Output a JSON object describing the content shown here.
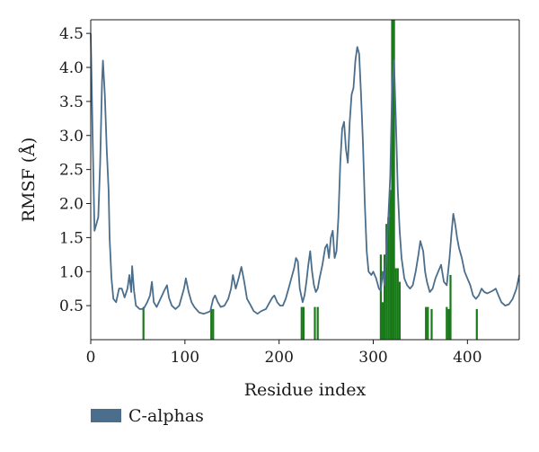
{
  "chart_data": {
    "type": "line",
    "xlabel": "Residue index",
    "ylabel": "RMSF (Å)",
    "xlim": [
      0,
      455
    ],
    "ylim": [
      0.0,
      4.7
    ],
    "x_ticks": [
      0,
      100,
      200,
      300,
      400
    ],
    "y_ticks": [
      0.5,
      1.0,
      1.5,
      2.0,
      2.5,
      3.0,
      3.5,
      4.0,
      4.5
    ],
    "x_tick_labels": [
      "0",
      "100",
      "200",
      "300",
      "400"
    ],
    "y_tick_labels": [
      "0.5",
      "1.0",
      "1.5",
      "2.0",
      "2.5",
      "3.0",
      "3.5",
      "4.0",
      "4.5"
    ],
    "grid": false,
    "legend_position": "bottom-left",
    "series": [
      {
        "name": "C-alphas",
        "color": "#4a6e8c",
        "points": [
          [
            0,
            4.5
          ],
          [
            2,
            3.0
          ],
          [
            4,
            1.6
          ],
          [
            6,
            1.7
          ],
          [
            8,
            1.8
          ],
          [
            10,
            2.6
          ],
          [
            12,
            3.8
          ],
          [
            13,
            4.1
          ],
          [
            15,
            3.6
          ],
          [
            17,
            2.8
          ],
          [
            19,
            2.2
          ],
          [
            20,
            1.5
          ],
          [
            22,
            0.9
          ],
          [
            24,
            0.6
          ],
          [
            27,
            0.55
          ],
          [
            30,
            0.75
          ],
          [
            33,
            0.75
          ],
          [
            36,
            0.62
          ],
          [
            39,
            0.75
          ],
          [
            41,
            0.95
          ],
          [
            43,
            0.7
          ],
          [
            44,
            1.08
          ],
          [
            46,
            0.72
          ],
          [
            48,
            0.5
          ],
          [
            52,
            0.45
          ],
          [
            56,
            0.45
          ],
          [
            60,
            0.55
          ],
          [
            63,
            0.65
          ],
          [
            65,
            0.85
          ],
          [
            67,
            0.55
          ],
          [
            70,
            0.48
          ],
          [
            74,
            0.6
          ],
          [
            78,
            0.72
          ],
          [
            81,
            0.8
          ],
          [
            83,
            0.62
          ],
          [
            86,
            0.5
          ],
          [
            90,
            0.45
          ],
          [
            94,
            0.5
          ],
          [
            97,
            0.65
          ],
          [
            99,
            0.75
          ],
          [
            101,
            0.9
          ],
          [
            104,
            0.7
          ],
          [
            107,
            0.55
          ],
          [
            110,
            0.48
          ],
          [
            115,
            0.4
          ],
          [
            120,
            0.38
          ],
          [
            124,
            0.4
          ],
          [
            127,
            0.42
          ],
          [
            130,
            0.6
          ],
          [
            132,
            0.65
          ],
          [
            135,
            0.55
          ],
          [
            138,
            0.48
          ],
          [
            142,
            0.5
          ],
          [
            146,
            0.6
          ],
          [
            149,
            0.75
          ],
          [
            151,
            0.95
          ],
          [
            154,
            0.75
          ],
          [
            157,
            0.9
          ],
          [
            160,
            1.07
          ],
          [
            163,
            0.85
          ],
          [
            166,
            0.6
          ],
          [
            170,
            0.5
          ],
          [
            173,
            0.42
          ],
          [
            177,
            0.38
          ],
          [
            181,
            0.42
          ],
          [
            186,
            0.45
          ],
          [
            190,
            0.55
          ],
          [
            193,
            0.62
          ],
          [
            195,
            0.65
          ],
          [
            198,
            0.55
          ],
          [
            201,
            0.5
          ],
          [
            204,
            0.5
          ],
          [
            207,
            0.6
          ],
          [
            210,
            0.75
          ],
          [
            213,
            0.9
          ],
          [
            216,
            1.05
          ],
          [
            218,
            1.2
          ],
          [
            220,
            1.15
          ],
          [
            222,
            0.75
          ],
          [
            225,
            0.55
          ],
          [
            227,
            0.65
          ],
          [
            229,
            0.85
          ],
          [
            231,
            1.1
          ],
          [
            233,
            1.3
          ],
          [
            235,
            1.0
          ],
          [
            237,
            0.8
          ],
          [
            239,
            0.7
          ],
          [
            241,
            0.75
          ],
          [
            243,
            0.9
          ],
          [
            246,
            1.1
          ],
          [
            249,
            1.35
          ],
          [
            251,
            1.4
          ],
          [
            253,
            1.2
          ],
          [
            255,
            1.5
          ],
          [
            257,
            1.6
          ],
          [
            259,
            1.2
          ],
          [
            261,
            1.3
          ],
          [
            263,
            1.8
          ],
          [
            265,
            2.6
          ],
          [
            267,
            3.1
          ],
          [
            269,
            3.2
          ],
          [
            271,
            2.8
          ],
          [
            273,
            2.6
          ],
          [
            275,
            3.2
          ],
          [
            277,
            3.6
          ],
          [
            279,
            3.7
          ],
          [
            281,
            4.1
          ],
          [
            283,
            4.3
          ],
          [
            285,
            4.2
          ],
          [
            287,
            3.6
          ],
          [
            289,
            2.9
          ],
          [
            291,
            2.0
          ],
          [
            293,
            1.3
          ],
          [
            295,
            1.0
          ],
          [
            298,
            0.95
          ],
          [
            300,
            1.0
          ],
          [
            303,
            0.9
          ],
          [
            306,
            0.75
          ],
          [
            308,
            0.72
          ],
          [
            310,
            1.0
          ],
          [
            312,
            0.8
          ],
          [
            314,
            1.3
          ],
          [
            316,
            1.8
          ],
          [
            318,
            2.4
          ],
          [
            320,
            3.7
          ],
          [
            322,
            4.1
          ],
          [
            324,
            3.2
          ],
          [
            326,
            2.2
          ],
          [
            328,
            1.6
          ],
          [
            330,
            1.2
          ],
          [
            333,
            0.9
          ],
          [
            336,
            0.8
          ],
          [
            339,
            0.75
          ],
          [
            342,
            0.8
          ],
          [
            345,
            1.0
          ],
          [
            348,
            1.25
          ],
          [
            350,
            1.45
          ],
          [
            353,
            1.3
          ],
          [
            355,
            1.0
          ],
          [
            357,
            0.85
          ],
          [
            360,
            0.7
          ],
          [
            363,
            0.75
          ],
          [
            366,
            0.9
          ],
          [
            369,
            1.0
          ],
          [
            372,
            1.1
          ],
          [
            375,
            0.85
          ],
          [
            378,
            0.8
          ],
          [
            381,
            1.2
          ],
          [
            383,
            1.55
          ],
          [
            385,
            1.85
          ],
          [
            387,
            1.7
          ],
          [
            389,
            1.5
          ],
          [
            391,
            1.35
          ],
          [
            394,
            1.2
          ],
          [
            397,
            1.0
          ],
          [
            400,
            0.9
          ],
          [
            403,
            0.8
          ],
          [
            406,
            0.65
          ],
          [
            409,
            0.6
          ],
          [
            412,
            0.65
          ],
          [
            415,
            0.75
          ],
          [
            418,
            0.7
          ],
          [
            421,
            0.68
          ],
          [
            424,
            0.7
          ],
          [
            427,
            0.72
          ],
          [
            430,
            0.75
          ],
          [
            433,
            0.65
          ],
          [
            436,
            0.55
          ],
          [
            440,
            0.5
          ],
          [
            444,
            0.52
          ],
          [
            448,
            0.6
          ],
          [
            452,
            0.75
          ],
          [
            455,
            0.95
          ]
        ]
      },
      {
        "name": "",
        "color": "#1a7a1a",
        "bars": [
          [
            56,
            0.48
          ],
          [
            128,
            0.45
          ],
          [
            130,
            0.45
          ],
          [
            224,
            0.48
          ],
          [
            226,
            0.48
          ],
          [
            238,
            0.48
          ],
          [
            241,
            0.48
          ],
          [
            308,
            1.25
          ],
          [
            310,
            0.55
          ],
          [
            312,
            1.25
          ],
          [
            314,
            1.7
          ],
          [
            316,
            1.8
          ],
          [
            318,
            2.2
          ],
          [
            320,
            4.7
          ],
          [
            321,
            4.7
          ],
          [
            322,
            4.7
          ],
          [
            324,
            1.05
          ],
          [
            326,
            1.05
          ],
          [
            328,
            0.85
          ],
          [
            356,
            0.48
          ],
          [
            358,
            0.48
          ],
          [
            362,
            0.45
          ],
          [
            378,
            0.48
          ],
          [
            380,
            0.45
          ],
          [
            382,
            0.95
          ],
          [
            410,
            0.45
          ]
        ]
      }
    ]
  }
}
